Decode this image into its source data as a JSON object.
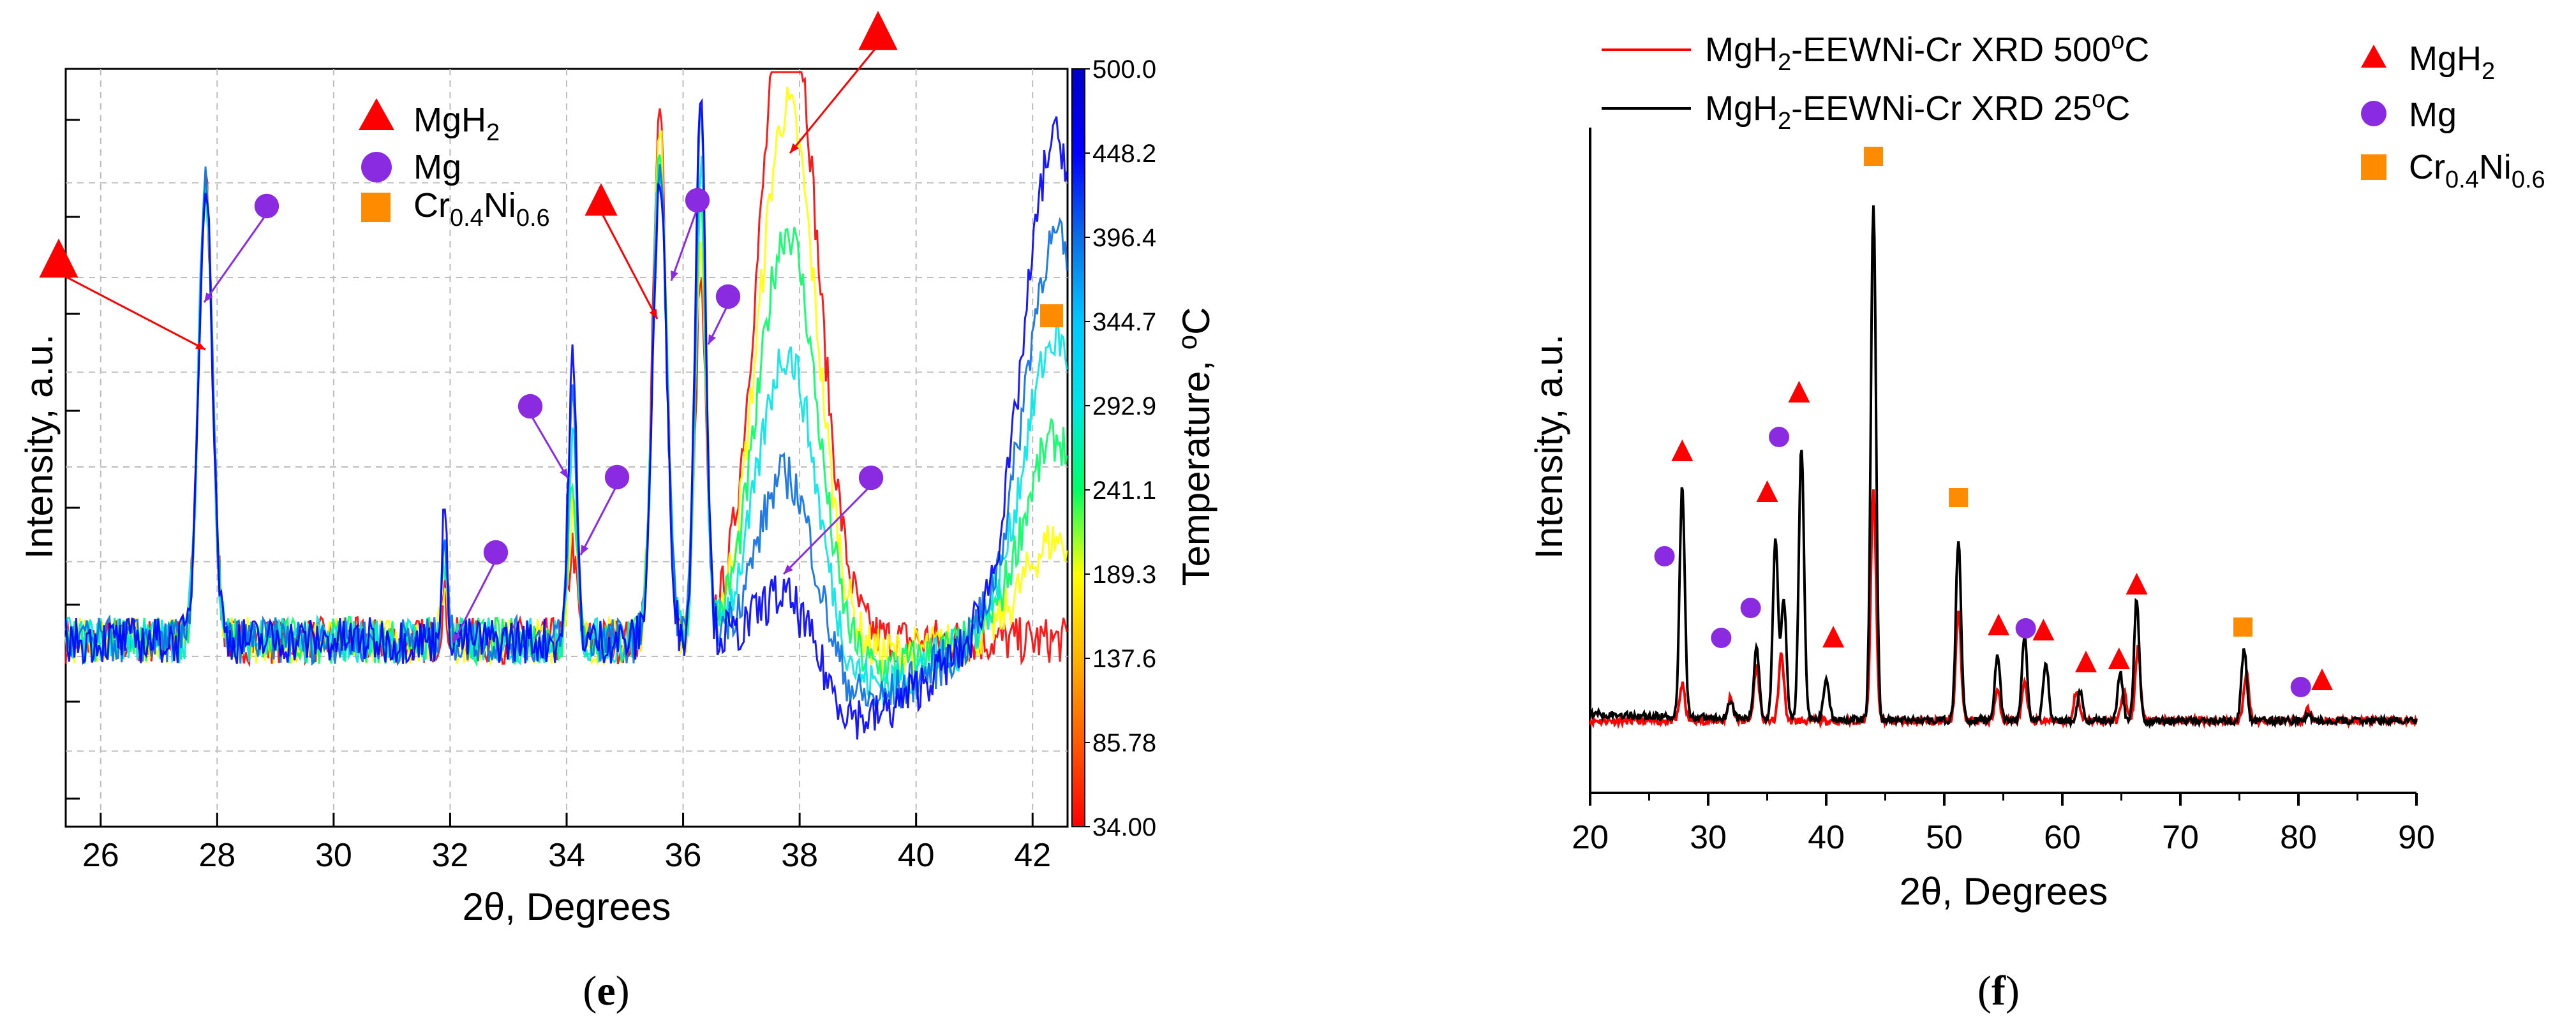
{
  "chart_data": [
    {
      "panel": "e",
      "type": "line",
      "xlabel": "2θ, Degrees",
      "ylabel": "Intensity, a.u.",
      "xlim": [
        25.4,
        42.6
      ],
      "x_ticks": [
        "26",
        "28",
        "30",
        "32",
        "34",
        "36",
        "38",
        "40",
        "42"
      ],
      "legend": [
        {
          "label": "MgH",
          "sub": "2",
          "marker": "triangle",
          "color": "#ff0000"
        },
        {
          "label": "Mg",
          "marker": "circle",
          "color": "#8a2be2"
        },
        {
          "label": "Cr0.4Ni0.6",
          "marker": "square",
          "color": "#ff8c00"
        }
      ],
      "colorbar": {
        "title": "Temperature, °C",
        "labels": [
          "500.0",
          "448.2",
          "396.4",
          "344.7",
          "292.9",
          "241.1",
          "189.3",
          "137.6",
          "85.78",
          "34.00"
        ],
        "colors": [
          "#0000c8",
          "#0000ff",
          "#0a6ee6",
          "#00c8ff",
          "#00e6e6",
          "#00ff64",
          "#ffff00",
          "#ffb400",
          "#ff5a00",
          "#ff0000"
        ]
      },
      "series": [
        {
          "name": "34.00 °C",
          "color": "#ff0000"
        },
        {
          "name": "189.3 °C",
          "color": "#ffff00"
        },
        {
          "name": "241.1 °C",
          "color": "#00ff64"
        },
        {
          "name": "344.7 °C",
          "color": "#00e6e6"
        },
        {
          "name": "448.2 °C",
          "color": "#0a6ee6"
        },
        {
          "name": "500.0 °C",
          "color": "#0000ff"
        }
      ],
      "peak_markers": [
        {
          "phase": "MgH2",
          "x": 27.8
        },
        {
          "phase": "Mg",
          "x": 28.6
        },
        {
          "phase": "Mg",
          "x": 32.0
        },
        {
          "phase": "Mg",
          "x": 34.2
        },
        {
          "phase": "MgH2",
          "x": 35.6
        },
        {
          "phase": "Mg",
          "x": 36.2
        },
        {
          "phase": "MgH2",
          "x": 37.8
        },
        {
          "phase": "Mg",
          "x": 38.5
        },
        {
          "phase": "Cr0.4Ni0.6",
          "x": 42.3
        }
      ]
    },
    {
      "panel": "f",
      "type": "line",
      "xlabel": "2θ, Degrees",
      "ylabel": "Intensity, a.u.",
      "xlim": [
        20,
        90
      ],
      "x_ticks": [
        "20",
        "30",
        "40",
        "50",
        "60",
        "70",
        "80",
        "90"
      ],
      "series": [
        {
          "name": "MgH2-EEWNi-Cr XRD 500oC",
          "color": "#ff0000",
          "peaks": [
            [
              27.8,
              0.6
            ],
            [
              31.9,
              0.4
            ],
            [
              34.1,
              0.9
            ],
            [
              36.2,
              1.1
            ],
            [
              44.0,
              3.8
            ],
            [
              51.2,
              1.8
            ],
            [
              54.5,
              0.5
            ],
            [
              56.8,
              0.6
            ],
            [
              61.2,
              0.5
            ],
            [
              65.2,
              0.5
            ],
            [
              66.4,
              1.2
            ],
            [
              75.6,
              0.8
            ],
            [
              80.8,
              0.2
            ]
          ]
        },
        {
          "name": "MgH2-EEWNi-Cr XRD 25oC",
          "color": "#000000",
          "peaks": [
            [
              27.8,
              3.8
            ],
            [
              31.9,
              0.3
            ],
            [
              34.1,
              1.2
            ],
            [
              35.7,
              3.0
            ],
            [
              36.4,
              2.0
            ],
            [
              37.9,
              4.5
            ],
            [
              40.0,
              0.7
            ],
            [
              44.0,
              8.5
            ],
            [
              51.2,
              3.0
            ],
            [
              54.5,
              1.1
            ],
            [
              56.8,
              1.4
            ],
            [
              58.6,
              1.0
            ],
            [
              61.5,
              0.5
            ],
            [
              64.9,
              0.8
            ],
            [
              66.3,
              2.0
            ],
            [
              75.4,
              1.2
            ],
            [
              80.8,
              0.1
            ]
          ]
        }
      ],
      "legend_series": [
        {
          "text": "MgH",
          "sub": "2",
          "rest": "-EEWNi-Cr XRD 500",
          "sup": "o",
          "tail": "C",
          "color": "#ff0000"
        },
        {
          "text": "MgH",
          "sub": "2",
          "rest": "-EEWNi-Cr XRD 25",
          "sup": "o",
          "tail": "C",
          "color": "#000000"
        }
      ],
      "legend_markers": [
        {
          "label": "MgH2",
          "marker": "triangle",
          "color": "#ff0000"
        },
        {
          "label": "Mg",
          "marker": "circle",
          "color": "#8a2be2"
        },
        {
          "label": "Cr0.4Ni0.6",
          "marker": "square",
          "color": "#ff8c00"
        }
      ],
      "peak_markers": [
        {
          "phase": "MgH2",
          "x": 27.8
        },
        {
          "phase": "Mg",
          "x": 26.3
        },
        {
          "phase": "Mg",
          "x": 31.1
        },
        {
          "phase": "Mg",
          "x": 33.6
        },
        {
          "phase": "MgH2",
          "x": 35.0
        },
        {
          "phase": "Mg",
          "x": 36.0
        },
        {
          "phase": "MgH2",
          "x": 37.7
        },
        {
          "phase": "MgH2",
          "x": 40.6
        },
        {
          "phase": "Cr0.4Ni0.6",
          "x": 44.0
        },
        {
          "phase": "Cr0.4Ni0.6",
          "x": 51.2
        },
        {
          "phase": "MgH2",
          "x": 54.6
        },
        {
          "phase": "Mg",
          "x": 56.9
        },
        {
          "phase": "MgH2",
          "x": 58.4
        },
        {
          "phase": "MgH2",
          "x": 62.0
        },
        {
          "phase": "MgH2",
          "x": 64.8
        },
        {
          "phase": "MgH2",
          "x": 66.3
        },
        {
          "phase": "Cr0.4Ni0.6",
          "x": 75.3
        },
        {
          "phase": "Mg",
          "x": 80.2
        },
        {
          "phase": "MgH2",
          "x": 82.0
        }
      ]
    }
  ],
  "captions": {
    "e": "e",
    "f": "f"
  }
}
